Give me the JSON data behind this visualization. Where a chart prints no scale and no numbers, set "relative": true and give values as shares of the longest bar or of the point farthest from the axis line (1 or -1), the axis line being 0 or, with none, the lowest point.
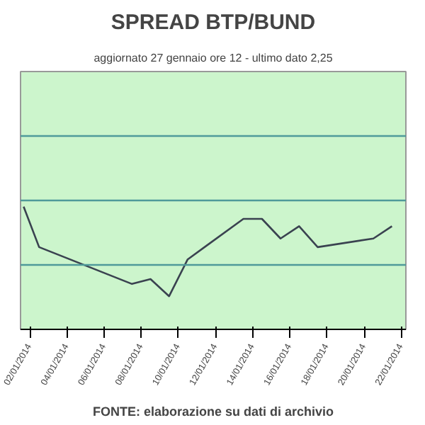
{
  "chart_data": {
    "type": "line",
    "title": "SPREAD BTP/BUND",
    "subtitle": "aggiornato 27 gennaio ore 12 - ultimo dato 2,25",
    "relative": true,
    "x": [
      "2014-01-01T16:00",
      "2014-01-02T12:00",
      "2014-01-07T12:00",
      "2014-01-08T12:00",
      "2014-01-09T12:00",
      "2014-01-10T12:00",
      "2014-01-11T12:00",
      "2014-01-13T12:00",
      "2014-01-14T12:00",
      "2014-01-15T12:00",
      "2014-01-16T12:00",
      "2014-01-17T12:00",
      "2014-01-20T12:00",
      "2014-01-21T12:00"
    ],
    "series": [
      {
        "color": "#3a4250",
        "values": [
          1,
          0.67,
          0.37,
          0.41,
          0.27,
          0.57,
          0.68,
          0.9,
          0.9,
          0.74,
          0.84,
          0.67,
          0.74,
          0.84
        ]
      }
    ],
    "xlim": [
      "2014-01-01T12:00",
      "2014-01-22T06:00"
    ],
    "xticks": [
      {
        "value": "2014-01-02",
        "label": "02/01/2014"
      },
      {
        "value": "2014-01-04",
        "label": "04/01/2014"
      },
      {
        "value": "2014-01-06",
        "label": "06/01/2014"
      },
      {
        "value": "2014-01-08",
        "label": "08/01/2014"
      },
      {
        "value": "2014-01-10",
        "label": "10/01/2014"
      },
      {
        "value": "2014-01-12",
        "label": "12/01/2014"
      },
      {
        "value": "2014-01-14",
        "label": "14/01/2014"
      },
      {
        "value": "2014-01-16",
        "label": "16/01/2014"
      },
      {
        "value": "2014-01-18",
        "label": "18/01/2014"
      },
      {
        "value": "2014-01-20",
        "label": "20/01/2014"
      },
      {
        "value": "2014-01-22",
        "label": "22/01/2014"
      }
    ],
    "ref_lines": [
      {
        "axis": "y",
        "value": 0.525,
        "color": "#4f9a9a"
      },
      {
        "axis": "y",
        "value": 1.05,
        "color": "#4f9a9a"
      },
      {
        "axis": "y",
        "value": 1.575,
        "color": "#4f9a9a"
      }
    ],
    "marker": "none",
    "line_style": "solid",
    "annotations": [
      "FONTE: elaborazione su dati di archivio"
    ]
  }
}
